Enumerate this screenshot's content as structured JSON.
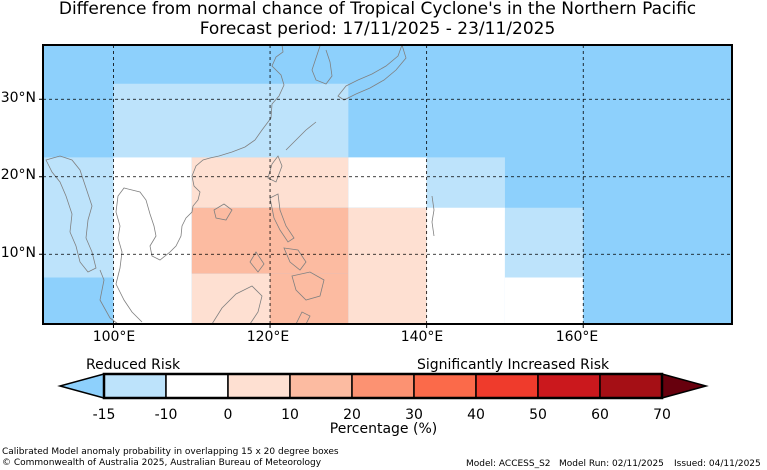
{
  "title_line1": "Difference from normal chance of Tropical Cyclone's in the Northern Pacific",
  "title_line2": "Forecast period: 17/11/2025 - 23/11/2025",
  "map": {
    "lon_range": [
      91,
      179
    ],
    "lat_range": [
      1,
      37
    ],
    "background_color": "#8dd0fc",
    "lat_labels": [
      {
        "lat": 30,
        "text": "30°N"
      },
      {
        "lat": 20,
        "text": "20°N"
      },
      {
        "lat": 10,
        "text": "10°N"
      }
    ],
    "lon_labels": [
      {
        "lon": 100,
        "text": "100°E"
      },
      {
        "lon": 120,
        "text": "120°E"
      },
      {
        "lon": 140,
        "text": "140°E"
      },
      {
        "lon": 160,
        "text": "160°E"
      }
    ],
    "anomaly_cells": [
      {
        "lon": [
          91,
          100
        ],
        "lat": [
          7,
          22.5
        ],
        "value": -12.5
      },
      {
        "lon": [
          100,
          130
        ],
        "lat": [
          22.5,
          32
        ],
        "value": -12.5
      },
      {
        "lon": [
          100,
          110
        ],
        "lat": [
          1,
          22.5
        ],
        "value": -5
      },
      {
        "lon": [
          110,
          130
        ],
        "lat": [
          16,
          22.5
        ],
        "value": 5
      },
      {
        "lon": [
          110,
          130
        ],
        "lat": [
          7.5,
          16
        ],
        "value": 15
      },
      {
        "lon": [
          110,
          120
        ],
        "lat": [
          1,
          7.5
        ],
        "value": 5
      },
      {
        "lon": [
          120,
          130
        ],
        "lat": [
          1,
          7.5
        ],
        "value": 15
      },
      {
        "lon": [
          130,
          140
        ],
        "lat": [
          16,
          22.5
        ],
        "value": -5
      },
      {
        "lon": [
          130,
          140
        ],
        "lat": [
          1,
          16
        ],
        "value": 5
      },
      {
        "lon": [
          140,
          150
        ],
        "lat": [
          15,
          22.5
        ],
        "value": -12.5
      },
      {
        "lon": [
          140,
          150
        ],
        "lat": [
          1,
          16
        ],
        "value": -5
      },
      {
        "lon": [
          150,
          160
        ],
        "lat": [
          7,
          16
        ],
        "value": -12.5
      },
      {
        "lon": [
          150,
          160
        ],
        "lat": [
          1,
          7
        ],
        "value": -5
      }
    ]
  },
  "colorbar": {
    "left_label": "Reduced Risk",
    "right_label": "Significantly Increased Risk",
    "title": "Percentage (%)",
    "ticks": [
      "-15",
      "-10",
      "0",
      "10",
      "20",
      "30",
      "40",
      "50",
      "60",
      "70"
    ],
    "bin_colors": [
      "#bde3fb",
      "#ffffff",
      "#fee0d2",
      "#fcbba1",
      "#fc9272",
      "#fb6a4a",
      "#ef3b2c",
      "#cb181d",
      "#a50f15"
    ],
    "under_color": "#8dd0fc",
    "over_color": "#67000d"
  },
  "footer": {
    "line1": "Calibrated Model anomaly probability in overlapping 15 x 20 degree boxes",
    "line2": "© Commonwealth of Australia 2025, Australian Bureau of Meteorology",
    "model": "Model: ACCESS_S2",
    "model_run": "Model Run: 02/11/2025",
    "issued": "Issued: 04/11/2025"
  }
}
